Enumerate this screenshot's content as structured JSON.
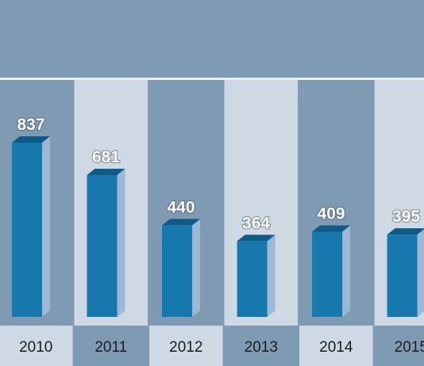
{
  "colors": {
    "background": "#7f9ab3",
    "column_dark": "#7f9ab3",
    "column_light": "#ced9e4",
    "bar_front": "#1778ad",
    "bar_top": "#0f5a86",
    "bar_side": "#9db7d6"
  },
  "chart_data": {
    "type": "bar",
    "title": "",
    "xlabel": "",
    "ylabel": "",
    "categories": [
      "2010",
      "2011",
      "2012",
      "2013",
      "2014",
      "2015"
    ],
    "values": [
      837,
      681,
      440,
      364,
      409,
      395
    ],
    "value_labels": [
      "837",
      "681",
      "440",
      "364",
      "409",
      "395"
    ],
    "ylim": [
      0,
      837
    ],
    "grid": false,
    "legend": "none"
  }
}
